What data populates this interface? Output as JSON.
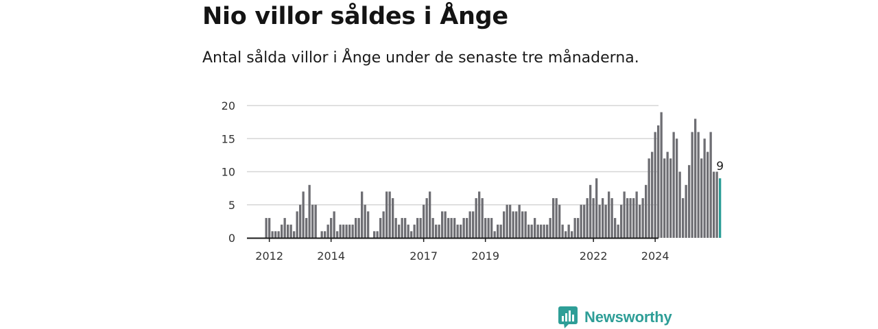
{
  "title": "Nio villor såldes i Ånge",
  "subtitle": "Antal sålda villor i Ånge under de senaste tre månaderna.",
  "brand": {
    "name": "Newsworthy"
  },
  "colors": {
    "bar": "#6e6e73",
    "highlight": "#2a9d96",
    "grid": "#d6d6d6",
    "axis": "#1a1a1a",
    "brand": "#2e9e97"
  },
  "chart_data": {
    "type": "bar",
    "x_ticks": [
      {
        "label": "2012",
        "index": 1
      },
      {
        "label": "2014",
        "index": 21
      },
      {
        "label": "2017",
        "index": 51
      },
      {
        "label": "2019",
        "index": 71
      },
      {
        "label": "2022",
        "index": 106
      },
      {
        "label": "2024",
        "index": 126
      }
    ],
    "y_ticks": [
      0,
      5,
      10,
      15,
      20
    ],
    "ylim": [
      0,
      20
    ],
    "values": [
      3,
      3,
      1,
      1,
      1,
      2,
      3,
      2,
      2,
      1,
      4,
      5,
      7,
      3,
      8,
      5,
      5,
      0,
      1,
      1,
      2,
      3,
      4,
      1,
      2,
      2,
      2,
      2,
      2,
      3,
      3,
      7,
      5,
      4,
      0,
      1,
      1,
      3,
      4,
      7,
      7,
      6,
      3,
      2,
      3,
      3,
      2,
      1,
      2,
      3,
      3,
      5,
      6,
      7,
      3,
      2,
      2,
      4,
      4,
      3,
      3,
      3,
      2,
      2,
      3,
      3,
      4,
      4,
      6,
      7,
      6,
      3,
      3,
      3,
      1,
      2,
      2,
      4,
      5,
      5,
      4,
      4,
      5,
      4,
      4,
      2,
      2,
      3,
      2,
      2,
      2,
      2,
      3,
      6,
      6,
      5,
      2,
      1,
      2,
      1,
      3,
      3,
      5,
      5,
      6,
      8,
      6,
      9,
      5,
      6,
      5,
      7,
      6,
      3,
      2,
      5,
      7,
      6,
      6,
      6,
      7,
      5,
      6,
      8,
      12,
      13,
      16,
      17,
      19,
      12,
      13,
      12,
      16,
      15,
      10,
      6,
      8,
      11,
      16,
      18,
      16,
      12,
      15,
      13,
      16,
      10,
      10,
      9
    ],
    "highlight_last": true,
    "last_value_label": "9"
  }
}
